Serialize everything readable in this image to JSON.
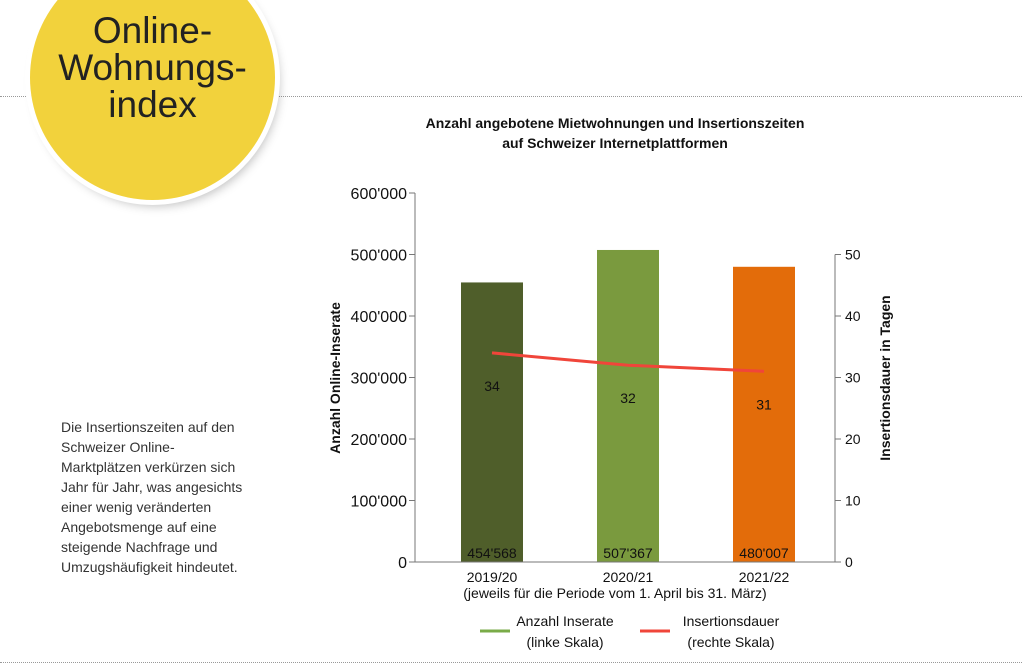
{
  "badge": {
    "line1": "Online-",
    "line2": "Wohnungs-",
    "line3": "index"
  },
  "side_text": "Die Insertionszeiten auf den Schweizer Online-Marktplätzen verkürzen sich Jahr für Jahr, was angesichts einer wenig veränderten Angebotsmenge auf eine steigende Nachfrage und Umzugshäufigkeit hindeutet.",
  "chart_data": {
    "type": "bar",
    "title_line1": "Anzahl angebotene Mietwohnungen und Insertionszeiten",
    "title_line2": "auf Schweizer Internetplattformen",
    "categories": [
      "2019/20",
      "2020/21",
      "2021/22"
    ],
    "xlabel": "(jeweils für die Periode vom 1. April bis 31. März)",
    "ylabel": "Anzahl Online-Inserate",
    "y2label": "Insertionsdauer in Tagen",
    "ylim": [
      0,
      600000
    ],
    "y2lim": [
      0,
      60
    ],
    "yticks": [
      "0",
      "100'000",
      "200'000",
      "300'000",
      "400'000",
      "500'000",
      "600'000"
    ],
    "y2ticks": [
      "0",
      "10",
      "20",
      "30",
      "40",
      "50"
    ],
    "series": [
      {
        "name": "Anzahl Inserate",
        "sub": "(linke Skala)",
        "type": "bar",
        "values": [
          454568,
          507367,
          480007
        ],
        "labels": [
          "454'568",
          "507'367",
          "480'007"
        ],
        "colors": [
          "#4f5e2a",
          "#7a9a3e",
          "#e36c0a"
        ],
        "legend_color": "#7aab48"
      },
      {
        "name": "Insertionsdauer",
        "sub": "(rechte Skala)",
        "type": "line",
        "values": [
          34,
          32,
          31
        ],
        "labels": [
          "34",
          "32",
          "31"
        ],
        "color": "#f0453a"
      }
    ],
    "legend": "bottom"
  }
}
